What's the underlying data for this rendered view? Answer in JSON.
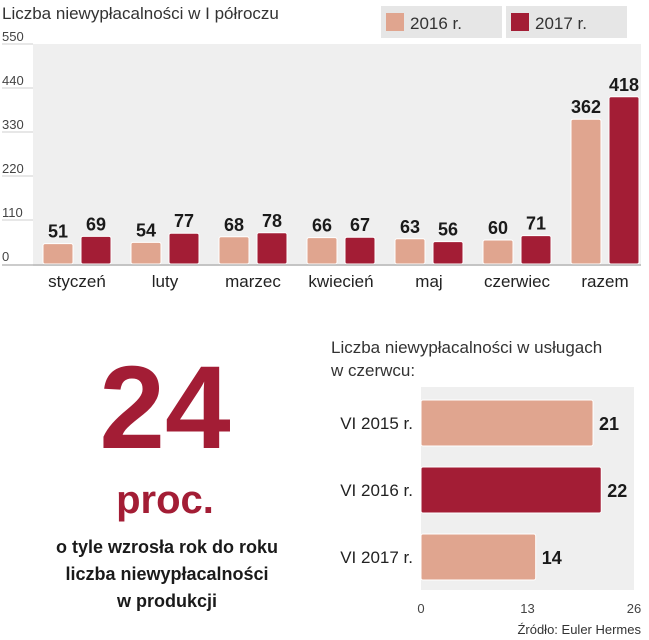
{
  "colors": {
    "c2016": "#e0a58f",
    "c2017": "#a31d35",
    "panel": "#efefef",
    "accent": "#a31d35"
  },
  "chart_data": [
    {
      "type": "bar",
      "title": "Liczba niewypłacalności w I półroczu",
      "categories": [
        "styczeń",
        "luty",
        "marzec",
        "kwiecień",
        "maj",
        "czerwiec",
        "razem"
      ],
      "series": [
        {
          "name": "2016 r.",
          "values": [
            51,
            54,
            68,
            66,
            63,
            60,
            362
          ]
        },
        {
          "name": "2017 r.",
          "values": [
            69,
            77,
            78,
            67,
            56,
            71,
            418
          ]
        }
      ],
      "yticks": [
        "0",
        "110",
        "220",
        "330",
        "440",
        "550"
      ],
      "ylim": [
        0,
        550
      ],
      "legend": "top-right",
      "grid": false
    },
    {
      "type": "bar",
      "orientation": "horizontal",
      "title": "Liczba niewypłacalności w usługach w czerwcu:",
      "title_lines": [
        "Liczba niewypłacalności w usługach",
        "w czerwcu:"
      ],
      "categories": [
        "VI 2015 r.",
        "VI 2016 r.",
        "VI 2017 r."
      ],
      "values": [
        21,
        22,
        14
      ],
      "highlight_index": 1,
      "xticks": [
        "0",
        "13",
        "26"
      ],
      "xlim": [
        0,
        26
      ]
    }
  ],
  "callout": {
    "number": "24",
    "unit": "proc.",
    "lines": [
      "o tyle wzrosła rok do roku",
      "liczba niewypłacalności",
      "w produkcji"
    ]
  },
  "source": "Źródło: Euler Hermes"
}
